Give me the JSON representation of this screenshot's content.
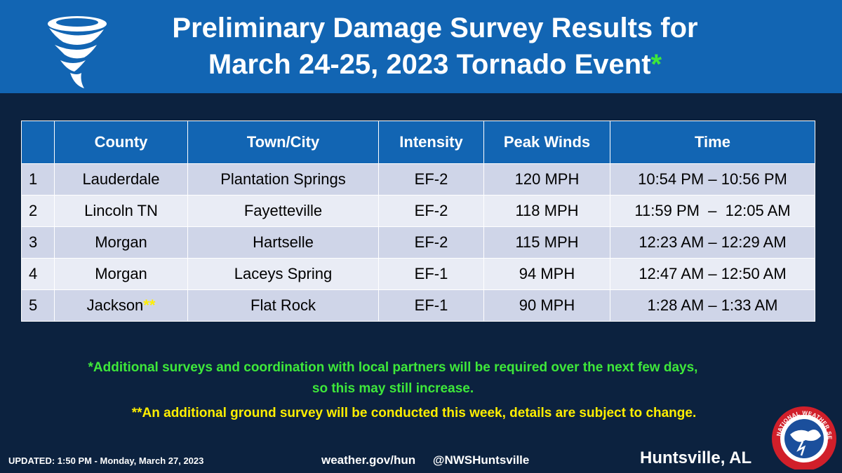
{
  "header": {
    "title_line1": "Preliminary Damage Survey Results for",
    "title_line2": "March 24-25, 2023 Tornado Event",
    "title_star": "*",
    "icon": "tornado-icon"
  },
  "table": {
    "headers": [
      "",
      "County",
      "Town/City",
      "Intensity",
      "Peak Winds",
      "Time"
    ],
    "rows": [
      {
        "num": "1",
        "county": "Lauderdale",
        "town": "Plantation Springs",
        "intensity": "EF-2",
        "winds": "120 MPH",
        "time": "10:54 PM – 10:56 PM"
      },
      {
        "num": "2",
        "county": "Lincoln TN",
        "town": "Fayetteville",
        "intensity": "EF-2",
        "winds": "118 MPH",
        "time": "11:59 PM  –  12:05 AM"
      },
      {
        "num": "3",
        "county": "Morgan",
        "town": "Hartselle",
        "intensity": "EF-2",
        "winds": "115 MPH",
        "time": "12:23 AM – 12:29 AM"
      },
      {
        "num": "4",
        "county": "Morgan",
        "town": "Laceys Spring",
        "intensity": "EF-1",
        "winds": "94 MPH",
        "time": "12:47 AM – 12:50 AM"
      },
      {
        "num": "5",
        "county": "Jackson",
        "county_mark": "**",
        "town": "Flat Rock",
        "intensity": "EF-1",
        "winds": "90 MPH",
        "time": "1:28 AM – 1:33 AM"
      }
    ]
  },
  "notes": {
    "note1_line1": "*Additional surveys and coordination with local partners will be required over the next few days,",
    "note1_line2": "so this may still increase.",
    "note2": "**An additional ground survey will be conducted this week, details are subject to change."
  },
  "footer": {
    "updated": "UPDATED: 1:50 PM - Monday, March 27, 2023",
    "website": "weather.gov/hun",
    "twitter": "@NWSHuntsville",
    "office": "Huntsville, AL",
    "logo": "nws-logo-icon",
    "logo_text": "NATIONAL WEATHER SERVICE"
  },
  "colors": {
    "header_blue": "#1265b3",
    "background": "#0c223f",
    "green": "#3ee83a",
    "yellow": "#ffee00"
  }
}
